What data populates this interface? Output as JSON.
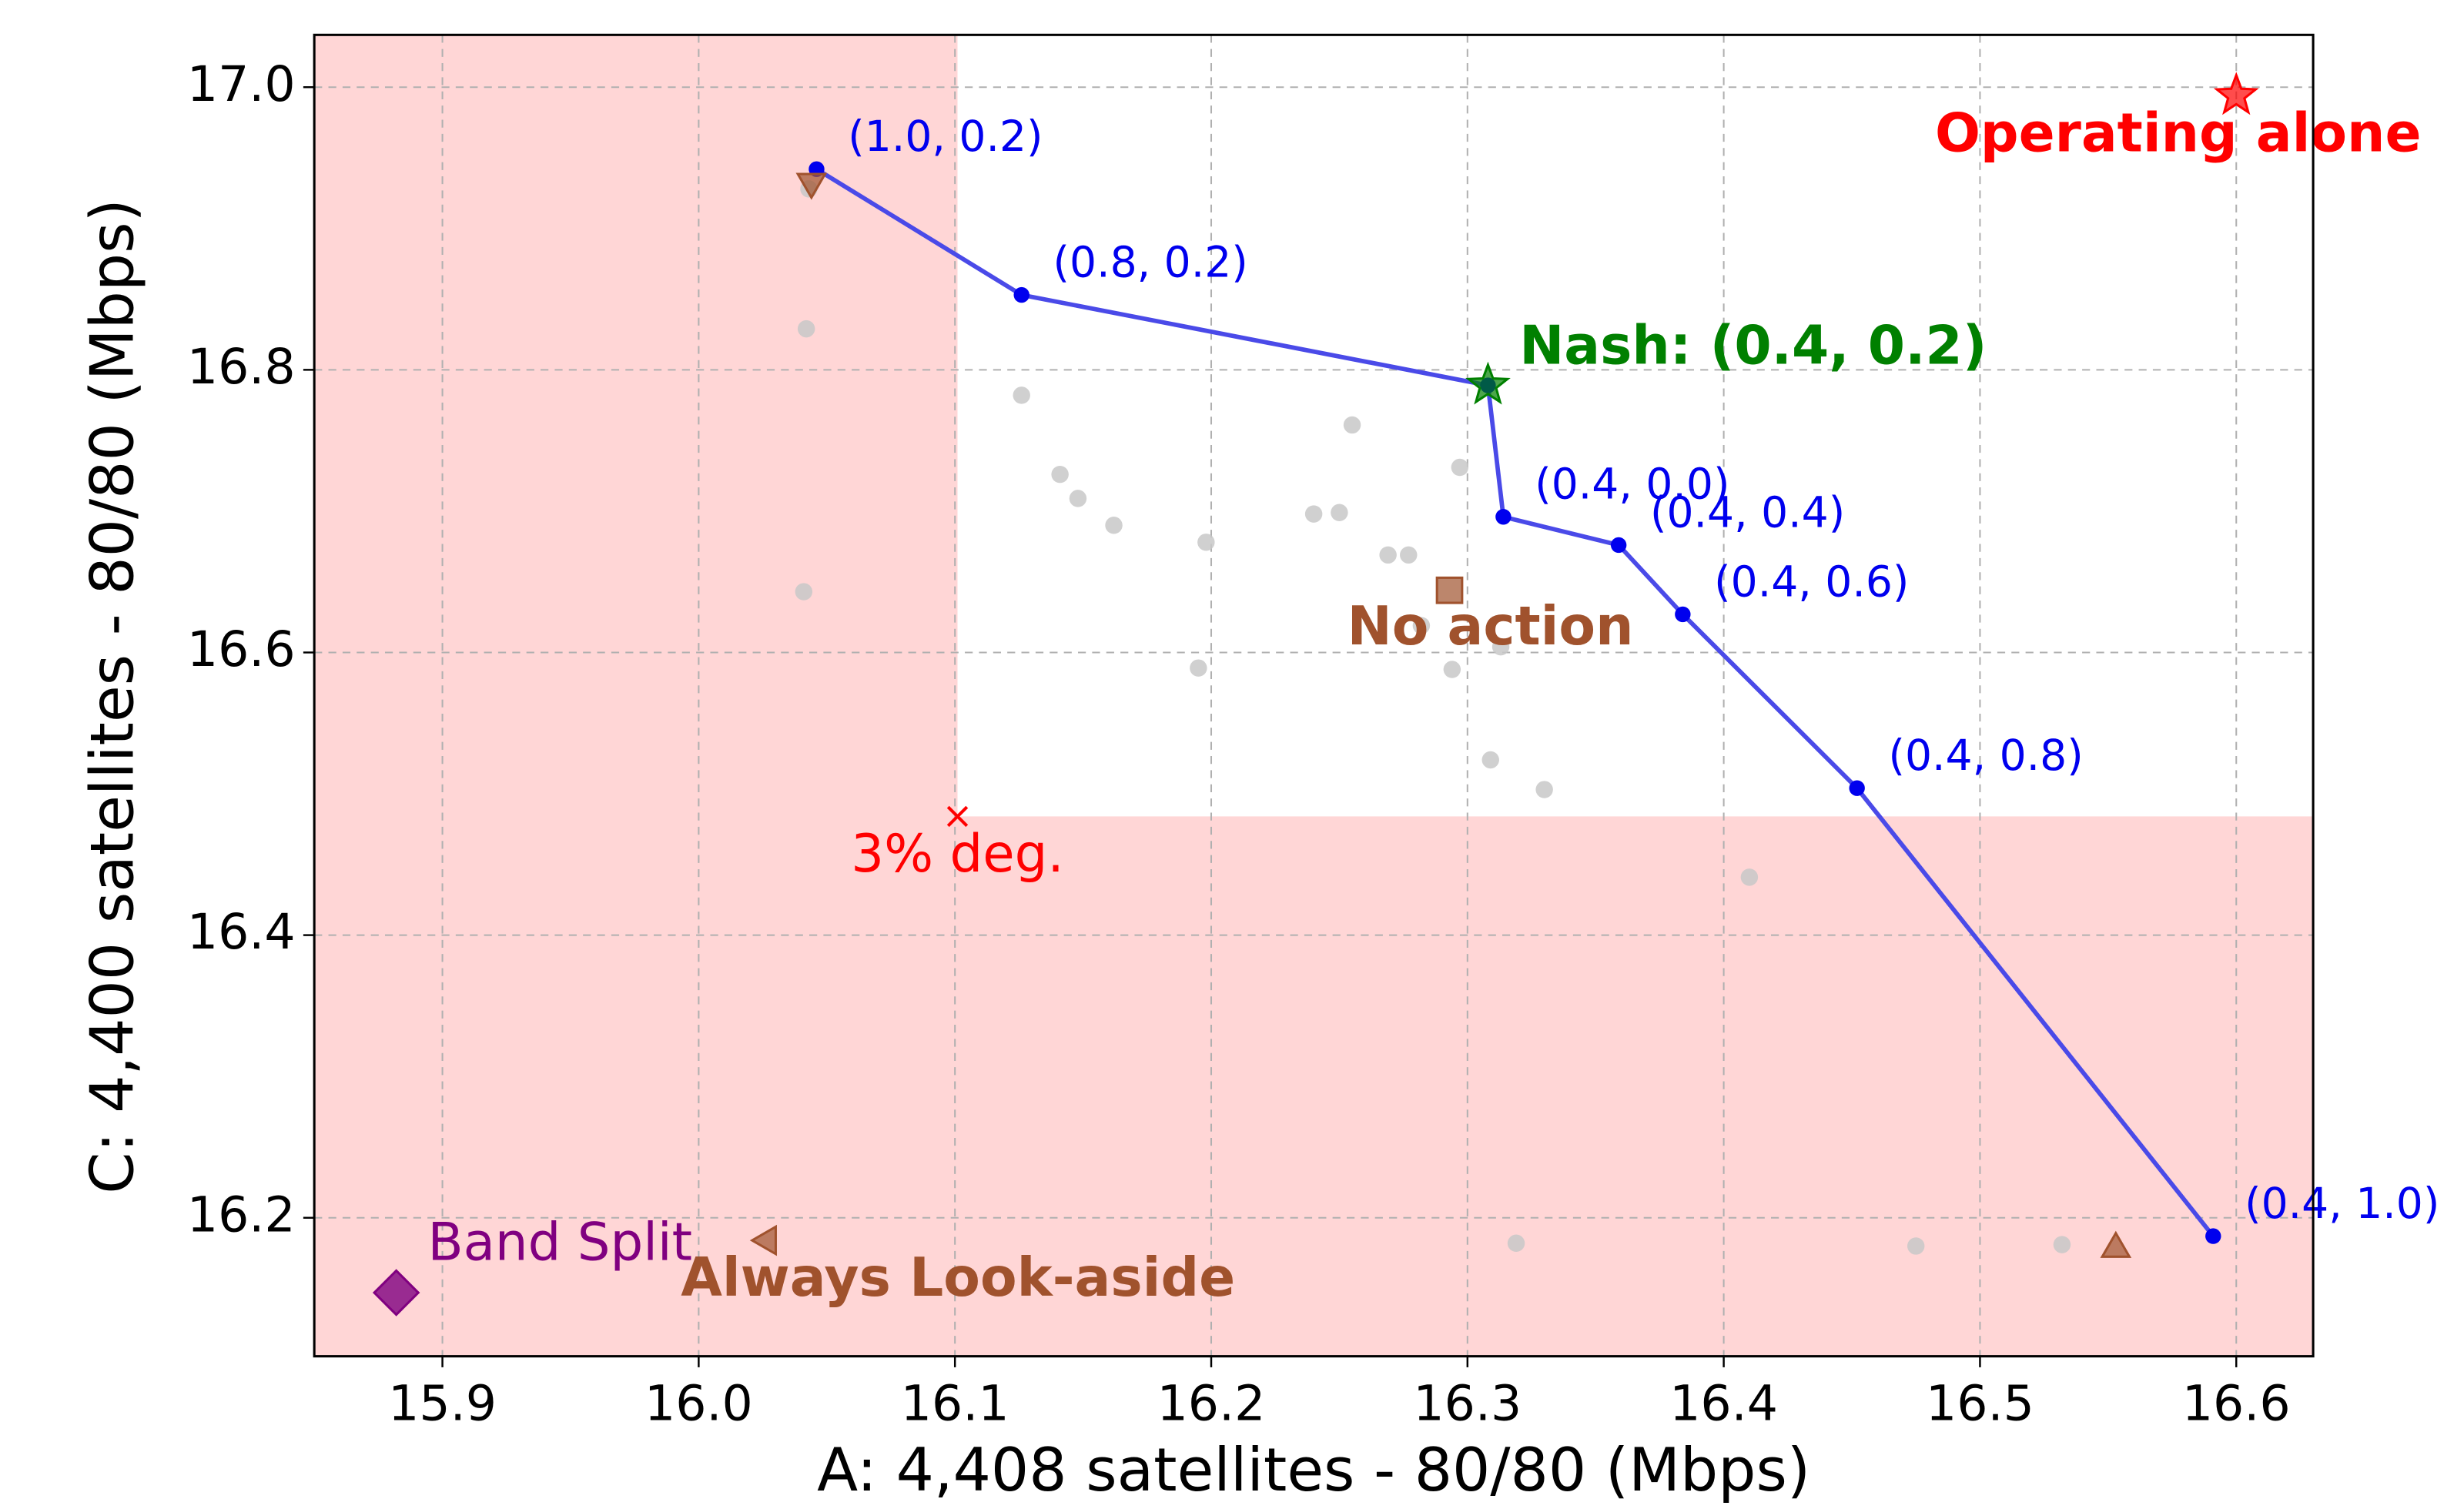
{
  "chart_data": {
    "type": "scatter",
    "xlabel": "A: 4,408 satellites - 80/80 (Mbps)",
    "ylabel": "C: 4,400 satellites - 80/80 (Mbps)",
    "xlim": [
      15.85,
      16.63
    ],
    "ylim": [
      16.102,
      17.037
    ],
    "xticks": [
      15.9,
      {
        "value": 16,
        "label": "16.0"
      },
      16.1,
      16.2,
      16.3,
      16.4,
      16.5,
      16.6
    ],
    "yticks": [
      16.2,
      16.4,
      16.6,
      16.8,
      {
        "value": 17,
        "label": "17.0"
      }
    ],
    "grid": true,
    "shade_color": "#ffd6d6",
    "frontier": {
      "color": "#4a4ae8",
      "point_color": "#0000ee",
      "x": [
        16.046,
        16.126,
        16.308,
        16.314,
        16.359,
        16.384,
        16.452,
        16.591
      ],
      "y": [
        16.942,
        16.853,
        16.789,
        16.696,
        16.676,
        16.627,
        16.504,
        16.187
      ],
      "point_labels": [
        "(1.0, 0.2)",
        "(0.8, 0.2)",
        null,
        "(0.4, 0.0)",
        "(0.4, 0.4)",
        "(0.4, 0.6)",
        "(0.4, 0.8)",
        "(0.4, 1.0)"
      ]
    },
    "others": {
      "color": "#c8c8c8",
      "x": [
        16.043,
        16.042,
        16.126,
        16.141,
        16.148,
        16.162,
        16.198,
        16.195,
        16.255,
        16.24,
        16.25,
        16.269,
        16.277,
        16.297,
        16.282,
        16.294,
        16.309,
        16.33,
        16.313,
        16.41,
        16.475,
        16.532,
        16.319,
        16.041
      ],
      "y": [
        16.928,
        16.829,
        16.782,
        16.726,
        16.709,
        16.69,
        16.678,
        16.589,
        16.761,
        16.698,
        16.699,
        16.669,
        16.669,
        16.731,
        16.619,
        16.588,
        16.524,
        16.503,
        16.604,
        16.441,
        16.18,
        16.181,
        16.182,
        16.643
      ]
    },
    "markers": [
      {
        "label": "Operating alone",
        "x": 16.6,
        "y": 16.994,
        "color": "#ff0000",
        "marker": "star"
      },
      {
        "label": "Nash: (0.4, 0.2)",
        "x": 16.308,
        "y": 16.789,
        "color": "#008000",
        "marker": "star"
      },
      {
        "label": "No action",
        "x": 16.293,
        "y": 16.644,
        "color": "#a0522d",
        "marker": "square"
      },
      {
        "label": "3% deg.",
        "x": 16.101,
        "y": 16.484,
        "color": "#ff0000",
        "marker": "x"
      },
      {
        "label": "Always Look-aside",
        "x": 16.027,
        "y": 16.184,
        "color": "#a0522d",
        "marker": "triangle-left"
      },
      {
        "x": 16.044,
        "y": 16.933,
        "color": "#a0522d",
        "marker": "triangle-down"
      },
      {
        "x": 16.553,
        "y": 16.178,
        "color": "#a0522d",
        "marker": "triangle-up"
      },
      {
        "label": "Band Split",
        "x": 15.882,
        "y": 16.147,
        "color": "#800080",
        "marker": "diamond"
      }
    ]
  }
}
